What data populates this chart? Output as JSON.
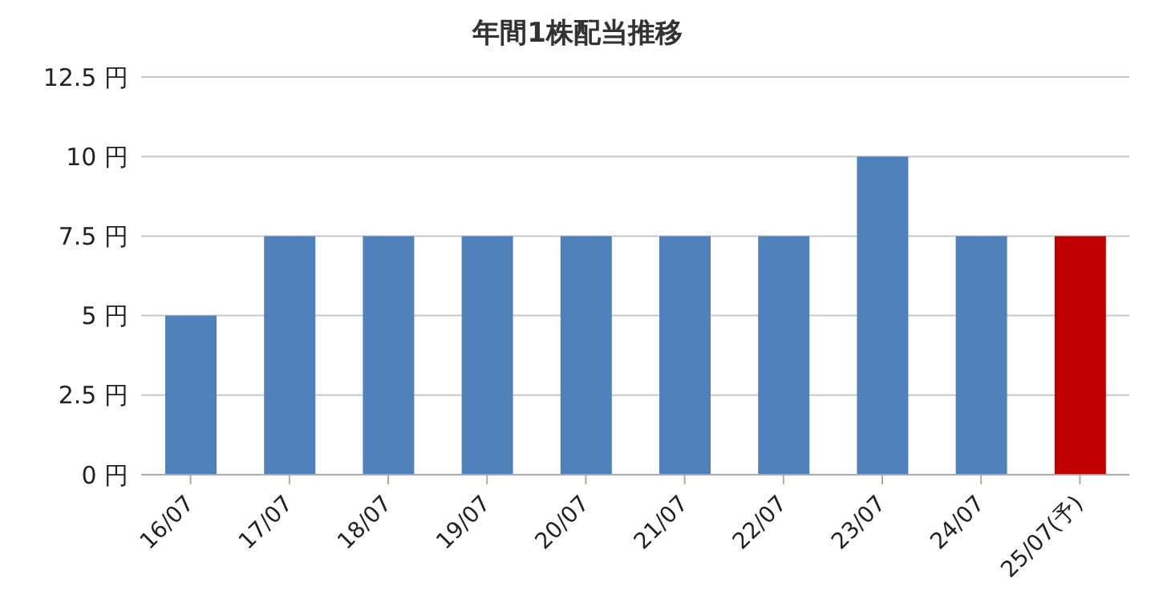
{
  "chart_data": {
    "type": "bar",
    "title": "年間1株配当推移",
    "categories": [
      "16/07",
      "17/07",
      "18/07",
      "19/07",
      "20/07",
      "21/07",
      "22/07",
      "23/07",
      "24/07",
      "25/07(予)"
    ],
    "values": [
      5,
      7.5,
      7.5,
      7.5,
      7.5,
      7.5,
      7.5,
      10,
      7.5,
      7.5
    ],
    "colors": [
      "#4f81bd",
      "#4f81bd",
      "#4f81bd",
      "#4f81bd",
      "#4f81bd",
      "#4f81bd",
      "#4f81bd",
      "#4f81bd",
      "#4f81bd",
      "#c00000"
    ],
    "ylim": [
      0,
      12.5
    ],
    "yticks": [
      {
        "value": 0,
        "label": "0 円"
      },
      {
        "value": 2.5,
        "label": "2.5 円"
      },
      {
        "value": 5,
        "label": "5 円"
      },
      {
        "value": 7.5,
        "label": "7.5 円"
      },
      {
        "value": 10,
        "label": "10 円"
      },
      {
        "value": 12.5,
        "label": "12.5 円"
      }
    ],
    "grid": "y",
    "legend": false
  }
}
